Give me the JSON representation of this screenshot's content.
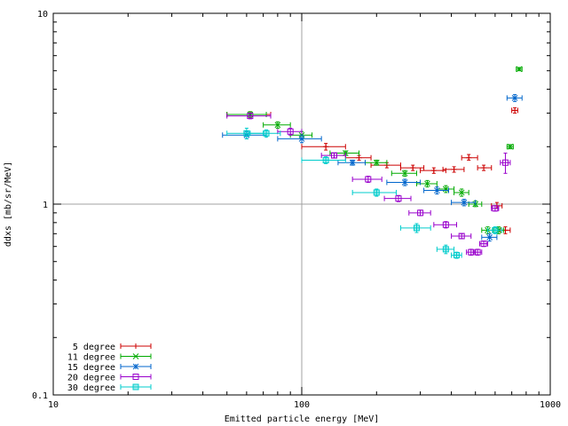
{
  "chart_data": {
    "type": "scatter",
    "title": "",
    "xlabel": "Emitted particle energy [MeV]",
    "ylabel": "ddxs [mb/sr/MeV]",
    "xscale": "log",
    "yscale": "log",
    "xlim": [
      10,
      1000
    ],
    "ylim": [
      0.1,
      10
    ],
    "xticks": [
      10,
      100,
      1000
    ],
    "yticks": [
      0.1,
      1,
      10
    ],
    "xtick_labels": [
      "10",
      "100",
      "1000"
    ],
    "ytick_labels": [
      "0.1",
      "1",
      "10"
    ],
    "grid": "major lines at x=100 and y=1",
    "legend_position": "bottom-left",
    "error_bars": "horizontal (energy bin width) and vertical",
    "series": [
      {
        "name": "5 degree",
        "color": "#cc0000",
        "points": [
          {
            "x": 62,
            "y": 2.95,
            "xlo": 50,
            "xhi": 75,
            "ylo": 2.85,
            "yhi": 3.05
          },
          {
            "x": 125,
            "y": 2.0,
            "xlo": 100,
            "xhi": 150,
            "ylo": 1.92,
            "yhi": 2.08
          },
          {
            "x": 170,
            "y": 1.75,
            "xlo": 150,
            "xhi": 190,
            "ylo": 1.7,
            "yhi": 1.8
          },
          {
            "x": 220,
            "y": 1.6,
            "xlo": 190,
            "xhi": 250,
            "ylo": 1.55,
            "yhi": 1.65
          },
          {
            "x": 280,
            "y": 1.55,
            "xlo": 250,
            "xhi": 310,
            "ylo": 1.5,
            "yhi": 1.6
          },
          {
            "x": 340,
            "y": 1.5,
            "xlo": 300,
            "xhi": 380,
            "ylo": 1.45,
            "yhi": 1.55
          },
          {
            "x": 410,
            "y": 1.52,
            "xlo": 370,
            "xhi": 450,
            "ylo": 1.47,
            "yhi": 1.57
          },
          {
            "x": 470,
            "y": 1.75,
            "xlo": 440,
            "xhi": 510,
            "ylo": 1.7,
            "yhi": 1.82
          },
          {
            "x": 540,
            "y": 1.55,
            "xlo": 510,
            "xhi": 580,
            "ylo": 1.5,
            "yhi": 1.6
          },
          {
            "x": 610,
            "y": 0.98,
            "xlo": 580,
            "xhi": 640,
            "ylo": 0.95,
            "yhi": 1.02
          },
          {
            "x": 660,
            "y": 0.73,
            "xlo": 630,
            "xhi": 690,
            "ylo": 0.7,
            "yhi": 0.76
          },
          {
            "x": 720,
            "y": 3.1,
            "xlo": 700,
            "xhi": 740,
            "ylo": 3.0,
            "yhi": 3.2
          }
        ]
      },
      {
        "name": "11 degree",
        "color": "#00aa00",
        "points": [
          {
            "x": 62,
            "y": 2.95,
            "xlo": 50,
            "xhi": 72,
            "ylo": 2.85,
            "yhi": 3.05
          },
          {
            "x": 80,
            "y": 2.6,
            "xlo": 70,
            "xhi": 90,
            "ylo": 2.5,
            "yhi": 2.7
          },
          {
            "x": 100,
            "y": 2.3,
            "xlo": 90,
            "xhi": 110,
            "ylo": 2.2,
            "yhi": 2.4
          },
          {
            "x": 150,
            "y": 1.85,
            "xlo": 130,
            "xhi": 170,
            "ylo": 1.8,
            "yhi": 1.9
          },
          {
            "x": 200,
            "y": 1.65,
            "xlo": 180,
            "xhi": 220,
            "ylo": 1.6,
            "yhi": 1.7
          },
          {
            "x": 260,
            "y": 1.45,
            "xlo": 230,
            "xhi": 290,
            "ylo": 1.4,
            "yhi": 1.5
          },
          {
            "x": 320,
            "y": 1.28,
            "xlo": 290,
            "xhi": 350,
            "ylo": 1.23,
            "yhi": 1.33
          },
          {
            "x": 380,
            "y": 1.2,
            "xlo": 350,
            "xhi": 410,
            "ylo": 1.15,
            "yhi": 1.25
          },
          {
            "x": 440,
            "y": 1.15,
            "xlo": 410,
            "xhi": 470,
            "ylo": 1.1,
            "yhi": 1.2
          },
          {
            "x": 500,
            "y": 1.0,
            "xlo": 470,
            "xhi": 530,
            "ylo": 0.97,
            "yhi": 1.04
          },
          {
            "x": 560,
            "y": 0.73,
            "xlo": 530,
            "xhi": 590,
            "ylo": 0.7,
            "yhi": 0.76
          },
          {
            "x": 620,
            "y": 0.73,
            "xlo": 590,
            "xhi": 650,
            "ylo": 0.7,
            "yhi": 0.76
          },
          {
            "x": 690,
            "y": 2.0,
            "xlo": 670,
            "xhi": 710,
            "ylo": 1.95,
            "yhi": 2.05
          },
          {
            "x": 750,
            "y": 5.1,
            "xlo": 730,
            "xhi": 770,
            "ylo": 5.0,
            "yhi": 5.2
          }
        ]
      },
      {
        "name": "15 degree",
        "color": "#0066cc",
        "points": [
          {
            "x": 60,
            "y": 2.3,
            "xlo": 48,
            "xhi": 72,
            "ylo": 2.2,
            "yhi": 2.4
          },
          {
            "x": 100,
            "y": 2.2,
            "xlo": 80,
            "xhi": 120,
            "ylo": 2.1,
            "yhi": 2.3
          },
          {
            "x": 160,
            "y": 1.65,
            "xlo": 140,
            "xhi": 180,
            "ylo": 1.6,
            "yhi": 1.7
          },
          {
            "x": 260,
            "y": 1.3,
            "xlo": 220,
            "xhi": 300,
            "ylo": 1.25,
            "yhi": 1.35
          },
          {
            "x": 350,
            "y": 1.18,
            "xlo": 310,
            "xhi": 390,
            "ylo": 1.13,
            "yhi": 1.23
          },
          {
            "x": 450,
            "y": 1.02,
            "xlo": 400,
            "xhi": 500,
            "ylo": 0.98,
            "yhi": 1.06
          },
          {
            "x": 570,
            "y": 0.67,
            "xlo": 530,
            "xhi": 610,
            "ylo": 0.64,
            "yhi": 0.7
          },
          {
            "x": 720,
            "y": 3.6,
            "xlo": 670,
            "xhi": 770,
            "ylo": 3.45,
            "yhi": 3.75
          }
        ]
      },
      {
        "name": "20 degree",
        "color": "#9900cc",
        "points": [
          {
            "x": 62,
            "y": 2.9,
            "xlo": 50,
            "xhi": 75,
            "ylo": 2.8,
            "yhi": 3.0
          },
          {
            "x": 90,
            "y": 2.4,
            "xlo": 80,
            "xhi": 100,
            "ylo": 2.3,
            "yhi": 2.5
          },
          {
            "x": 135,
            "y": 1.8,
            "xlo": 120,
            "xhi": 150,
            "ylo": 1.75,
            "yhi": 1.85
          },
          {
            "x": 185,
            "y": 1.35,
            "xlo": 160,
            "xhi": 210,
            "ylo": 1.3,
            "yhi": 1.4
          },
          {
            "x": 245,
            "y": 1.07,
            "xlo": 215,
            "xhi": 275,
            "ylo": 1.03,
            "yhi": 1.11
          },
          {
            "x": 300,
            "y": 0.9,
            "xlo": 270,
            "xhi": 330,
            "ylo": 0.87,
            "yhi": 0.93
          },
          {
            "x": 380,
            "y": 0.78,
            "xlo": 340,
            "xhi": 420,
            "ylo": 0.75,
            "yhi": 0.81
          },
          {
            "x": 440,
            "y": 0.68,
            "xlo": 400,
            "xhi": 480,
            "ylo": 0.66,
            "yhi": 0.7
          },
          {
            "x": 480,
            "y": 0.56,
            "xlo": 460,
            "xhi": 500,
            "ylo": 0.54,
            "yhi": 0.58
          },
          {
            "x": 510,
            "y": 0.56,
            "xlo": 490,
            "xhi": 530,
            "ylo": 0.54,
            "yhi": 0.58
          },
          {
            "x": 540,
            "y": 0.62,
            "xlo": 520,
            "xhi": 560,
            "ylo": 0.6,
            "yhi": 0.64
          },
          {
            "x": 600,
            "y": 0.95,
            "xlo": 580,
            "xhi": 620,
            "ylo": 0.92,
            "yhi": 0.98
          },
          {
            "x": 660,
            "y": 1.65,
            "xlo": 630,
            "xhi": 690,
            "ylo": 1.45,
            "yhi": 1.85
          }
        ]
      },
      {
        "name": "30 degree",
        "color": "#00cccc",
        "points": [
          {
            "x": 60,
            "y": 2.35,
            "xlo": 50,
            "xhi": 70,
            "ylo": 2.2,
            "yhi": 2.5
          },
          {
            "x": 72,
            "y": 2.35,
            "xlo": 62,
            "xhi": 82,
            "ylo": 2.25,
            "yhi": 2.45
          },
          {
            "x": 125,
            "y": 1.7,
            "xlo": 100,
            "xhi": 150,
            "ylo": 1.63,
            "yhi": 1.77
          },
          {
            "x": 200,
            "y": 1.15,
            "xlo": 160,
            "xhi": 240,
            "ylo": 1.1,
            "yhi": 1.2
          },
          {
            "x": 290,
            "y": 0.75,
            "xlo": 250,
            "xhi": 330,
            "ylo": 0.71,
            "yhi": 0.79
          },
          {
            "x": 380,
            "y": 0.58,
            "xlo": 350,
            "xhi": 410,
            "ylo": 0.55,
            "yhi": 0.61
          },
          {
            "x": 420,
            "y": 0.54,
            "xlo": 400,
            "xhi": 440,
            "ylo": 0.52,
            "yhi": 0.56
          },
          {
            "x": 600,
            "y": 0.73,
            "xlo": 560,
            "xhi": 640,
            "ylo": 0.7,
            "yhi": 0.76
          }
        ]
      }
    ]
  }
}
